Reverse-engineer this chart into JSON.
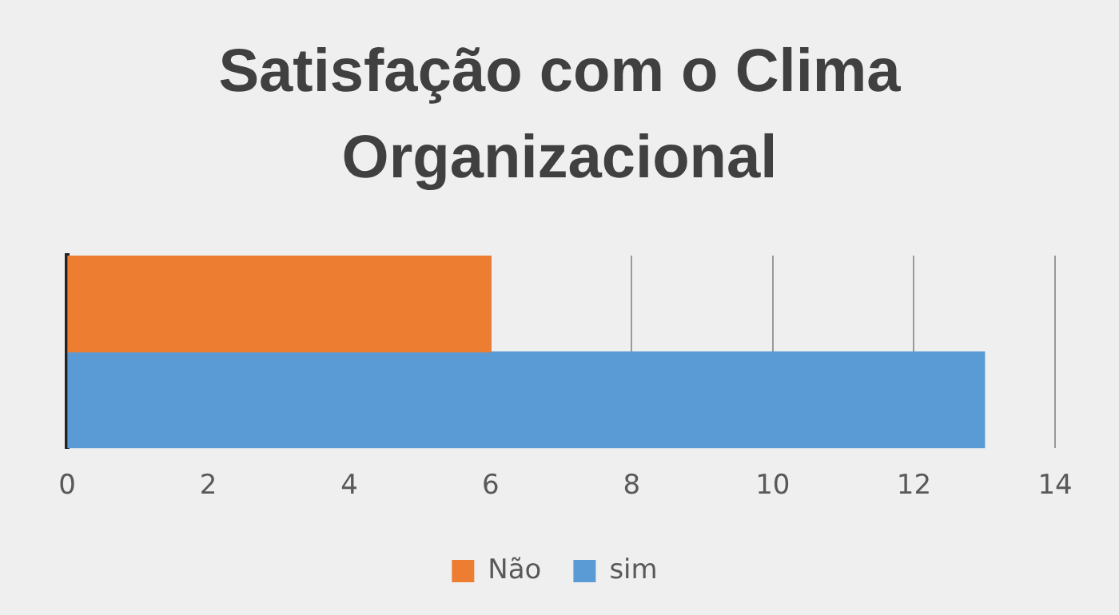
{
  "chart_data": {
    "type": "bar",
    "title": "Satisfação com o Clima Organizacional",
    "orientation": "horizontal",
    "categories": [
      null
    ],
    "series": [
      {
        "name": "Não",
        "color": "#ed7d31",
        "values": [
          6
        ]
      },
      {
        "name": "sim",
        "color": "#5b9bd5",
        "values": [
          13
        ]
      }
    ],
    "xlim": [
      0,
      14
    ],
    "xticks": [
      0,
      2,
      4,
      6,
      8,
      10,
      12,
      14
    ],
    "grid": "x",
    "legend": "bottom"
  }
}
